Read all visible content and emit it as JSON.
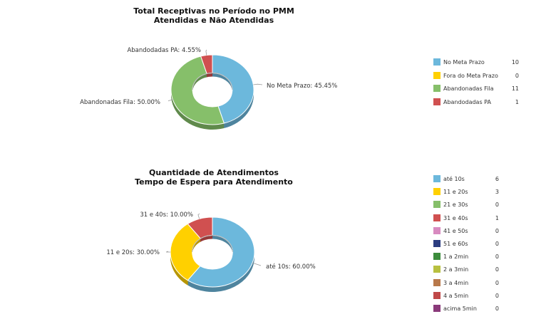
{
  "chart_data": [
    {
      "type": "pie",
      "title": "Total Receptivas no Período no PMM",
      "subtitle": "Atendidas e Não Atendidas",
      "slices": [
        {
          "name": "No Meta Prazo",
          "value": 10,
          "pct_label": "No Meta Prazo: 45.45%",
          "color": "#6cb8dc"
        },
        {
          "name": "Fora do Meta Prazo",
          "value": 0,
          "pct_label": "",
          "color": "#ffd000"
        },
        {
          "name": "Abandonadas Fila",
          "value": 11,
          "pct_label": "Abandonadas Fila: 50.00%",
          "color": "#86bf6a"
        },
        {
          "name": "Abandodadas PA",
          "value": 1,
          "pct_label": "Abandodadas PA: 4.55%",
          "color": "#d05050"
        }
      ],
      "legend_position": "right"
    },
    {
      "type": "pie",
      "title": "Quantidade de Atendimentos",
      "subtitle": "Tempo de Espera para Atendimento",
      "slices": [
        {
          "name": "até 10s",
          "value": 6,
          "pct_label": "até 10s: 60.00%",
          "color": "#6cb8dc"
        },
        {
          "name": "11 e 20s",
          "value": 3,
          "pct_label": "11 e 20s: 30.00%",
          "color": "#ffd000"
        },
        {
          "name": "21 e 30s",
          "value": 0,
          "pct_label": "",
          "color": "#86bf6a"
        },
        {
          "name": "31 e 40s",
          "value": 1,
          "pct_label": "31 e 40s: 10.00%",
          "color": "#d05050"
        },
        {
          "name": "41 e 50s",
          "value": 0,
          "pct_label": "",
          "color": "#d88ac0"
        },
        {
          "name": "51 e 60s",
          "value": 0,
          "pct_label": "",
          "color": "#2c3d80"
        },
        {
          "name": "1 a 2min",
          "value": 0,
          "pct_label": "",
          "color": "#3c8c3c"
        },
        {
          "name": "2 a 3min",
          "value": 0,
          "pct_label": "",
          "color": "#b8c040"
        },
        {
          "name": "3 a 4min",
          "value": 0,
          "pct_label": "",
          "color": "#b8784a"
        },
        {
          "name": "4 a 5min",
          "value": 0,
          "pct_label": "",
          "color": "#c04848"
        },
        {
          "name": "acima 5min",
          "value": 0,
          "pct_label": "",
          "color": "#8a3a7a"
        }
      ],
      "legend_position": "right"
    }
  ]
}
